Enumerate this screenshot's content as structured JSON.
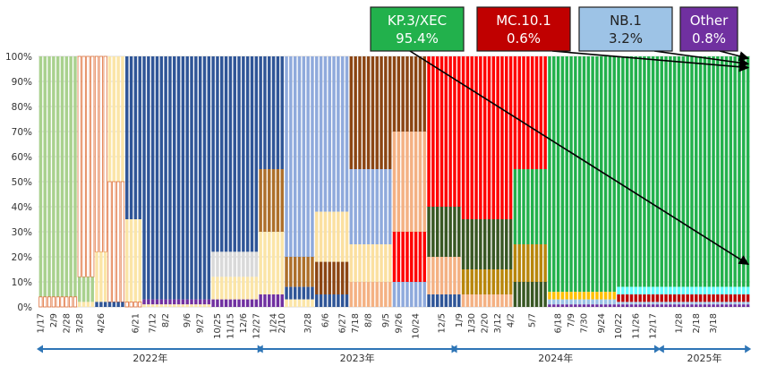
{
  "chart_data": {
    "type": "bar",
    "stacked": true,
    "ylim": [
      0,
      100
    ],
    "yticks": [
      "0%",
      "10%",
      "20%",
      "30%",
      "40%",
      "50%",
      "60%",
      "70%",
      "80%",
      "90%",
      "100%"
    ],
    "grid": true,
    "week_count": 165,
    "x_tick_labels": [
      {
        "week": 0,
        "label": "1/17"
      },
      {
        "week": 3,
        "label": "2/9"
      },
      {
        "week": 6,
        "label": "2/28"
      },
      {
        "week": 9,
        "label": "3/28"
      },
      {
        "week": 14,
        "label": "4/26"
      },
      {
        "week": 22,
        "label": "6/21"
      },
      {
        "week": 26,
        "label": "7/12"
      },
      {
        "week": 29,
        "label": "8/2"
      },
      {
        "week": 34,
        "label": "9/6"
      },
      {
        "week": 37,
        "label": "9/27"
      },
      {
        "week": 41,
        "label": "10/25"
      },
      {
        "week": 44,
        "label": "11/15"
      },
      {
        "week": 47,
        "label": "12/6"
      },
      {
        "week": 50,
        "label": "12/27"
      },
      {
        "week": 54,
        "label": "1/24"
      },
      {
        "week": 56,
        "label": "2/10"
      },
      {
        "week": 62,
        "label": "3/28"
      },
      {
        "week": 66,
        "label": "6/6"
      },
      {
        "week": 70,
        "label": "6/27"
      },
      {
        "week": 73,
        "label": "7/18"
      },
      {
        "week": 76,
        "label": "8/8"
      },
      {
        "week": 80,
        "label": "9/5"
      },
      {
        "week": 83,
        "label": "9/26"
      },
      {
        "week": 87,
        "label": "10/24"
      },
      {
        "week": 93,
        "label": "12/5"
      },
      {
        "week": 97,
        "label": "1/9"
      },
      {
        "week": 100,
        "label": "1/30"
      },
      {
        "week": 103,
        "label": "2/20"
      },
      {
        "week": 106,
        "label": "3/12"
      },
      {
        "week": 109,
        "label": "4/2"
      },
      {
        "week": 114,
        "label": "5/7"
      },
      {
        "week": 120,
        "label": "6/18"
      },
      {
        "week": 123,
        "label": "7/9"
      },
      {
        "week": 126,
        "label": "7/30"
      },
      {
        "week": 130,
        "label": "9/24"
      },
      {
        "week": 134,
        "label": "10/22"
      },
      {
        "week": 138,
        "label": "11/26"
      },
      {
        "week": 142,
        "label": "12/17"
      },
      {
        "week": 148,
        "label": "1/28"
      },
      {
        "week": 152,
        "label": "2/18"
      },
      {
        "week": 156,
        "label": "3/18"
      }
    ],
    "years": [
      {
        "label": "2022年",
        "start_week": 0,
        "end_week": 51
      },
      {
        "label": "2023年",
        "start_week": 51,
        "end_week": 96
      },
      {
        "label": "2024年",
        "start_week": 96,
        "end_week": 143
      },
      {
        "label": "2025年",
        "start_week": 144,
        "end_week": 164
      }
    ],
    "variant_colors": {
      "early": "#a9d18e",
      "ba1": "#f2a06c",
      "ba2_pre": "#fbe5a7",
      "ba5": "#2f5597",
      "ba5_other": "#d9d9d9",
      "ba275": "#7030a0",
      "xbb": "#ad6f2a",
      "xbb15": "#8faadc",
      "xbb116": "#fbe0a0",
      "eg5": "#8b4513",
      "ba286": "#f4b183",
      "jn1": "#ff0000",
      "jn1_sub": "#385723",
      "kp2": "#b8860b",
      "kp3_xec": "#22b14c",
      "mc101": "#c00000",
      "nb1": "#9dc3e6",
      "other": "#7030a0",
      "misc": "#ffc000",
      "teal": "#66ffff"
    },
    "phases": [
      {
        "from": 0,
        "to": 9,
        "mix": [
          [
            "early",
            96
          ],
          [
            "ba1",
            4
          ]
        ]
      },
      {
        "from": 9,
        "to": 13,
        "mix": [
          [
            "ba1",
            88
          ],
          [
            "early",
            10
          ],
          [
            "ba2_pre",
            2
          ]
        ]
      },
      {
        "from": 13,
        "to": 16,
        "mix": [
          [
            "ba1",
            78
          ],
          [
            "ba2_pre",
            20
          ],
          [
            "ba5",
            2
          ]
        ]
      },
      {
        "from": 16,
        "to": 20,
        "mix": [
          [
            "ba2_pre",
            50
          ],
          [
            "ba1",
            48
          ],
          [
            "ba5",
            2
          ]
        ]
      },
      {
        "from": 20,
        "to": 24,
        "mix": [
          [
            "ba5",
            65
          ],
          [
            "ba2_pre",
            33
          ],
          [
            "ba1",
            2
          ]
        ]
      },
      {
        "from": 24,
        "to": 40,
        "mix": [
          [
            "ba5",
            97
          ],
          [
            "ba275",
            2
          ],
          [
            "ba2_pre",
            1
          ]
        ]
      },
      {
        "from": 40,
        "to": 51,
        "mix": [
          [
            "ba5",
            78
          ],
          [
            "ba5_other",
            10
          ],
          [
            "ba2_pre",
            9
          ],
          [
            "ba275",
            3
          ]
        ]
      },
      {
        "from": 51,
        "to": 57,
        "mix": [
          [
            "ba5",
            45
          ],
          [
            "xbb",
            25
          ],
          [
            "ba2_pre",
            25
          ],
          [
            "ba275",
            5
          ]
        ]
      },
      {
        "from": 57,
        "to": 64,
        "mix": [
          [
            "xbb15",
            80
          ],
          [
            "xbb",
            12
          ],
          [
            "ba5",
            5
          ],
          [
            "ba2_pre",
            3
          ]
        ]
      },
      {
        "from": 64,
        "to": 72,
        "mix": [
          [
            "xbb15",
            62
          ],
          [
            "xbb116",
            20
          ],
          [
            "eg5",
            13
          ],
          [
            "ba5",
            5
          ]
        ]
      },
      {
        "from": 72,
        "to": 82,
        "mix": [
          [
            "eg5",
            45
          ],
          [
            "xbb15",
            30
          ],
          [
            "xbb116",
            15
          ],
          [
            "ba286",
            10
          ]
        ]
      },
      {
        "from": 82,
        "to": 90,
        "mix": [
          [
            "eg5",
            30
          ],
          [
            "ba286",
            40
          ],
          [
            "jn1",
            20
          ],
          [
            "xbb15",
            10
          ]
        ]
      },
      {
        "from": 90,
        "to": 98,
        "mix": [
          [
            "jn1",
            60
          ],
          [
            "jn1_sub",
            20
          ],
          [
            "ba286",
            15
          ],
          [
            "ba5",
            5
          ]
        ]
      },
      {
        "from": 98,
        "to": 110,
        "mix": [
          [
            "jn1",
            65
          ],
          [
            "jn1_sub",
            20
          ],
          [
            "kp2",
            10
          ],
          [
            "ba286",
            5
          ]
        ]
      },
      {
        "from": 110,
        "to": 118,
        "mix": [
          [
            "jn1",
            45
          ],
          [
            "kp3_xec",
            30
          ],
          [
            "kp2",
            15
          ],
          [
            "jn1_sub",
            10
          ]
        ]
      },
      {
        "from": 118,
        "to": 134,
        "mix": [
          [
            "kp3_xec",
            94
          ],
          [
            "misc",
            3
          ],
          [
            "nb1",
            2
          ],
          [
            "other",
            1
          ]
        ]
      },
      {
        "from": 134,
        "to": 165,
        "mix": [
          [
            "kp3_xec",
            92
          ],
          [
            "teal",
            3
          ],
          [
            "mc101",
            3
          ],
          [
            "nb1",
            1
          ],
          [
            "other",
            1
          ]
        ]
      }
    ],
    "annotations": [
      {
        "name": "KP.3/XEC",
        "value": "95.4%",
        "bg": "#22b14c",
        "fg": "#ffffff",
        "arrow_to_pct": 17
      },
      {
        "name": "MC.10.1",
        "value": "0.6%",
        "bg": "#c00000",
        "fg": "#ffffff",
        "arrow_to_pct": 95.5
      },
      {
        "name": "NB.1",
        "value": "3.2%",
        "bg": "#9dc3e6",
        "fg": "#222222",
        "arrow_to_pct": 97
      },
      {
        "name": "Other",
        "value": "0.8%",
        "bg": "#7030a0",
        "fg": "#ffffff",
        "arrow_to_pct": 99.2
      }
    ]
  }
}
